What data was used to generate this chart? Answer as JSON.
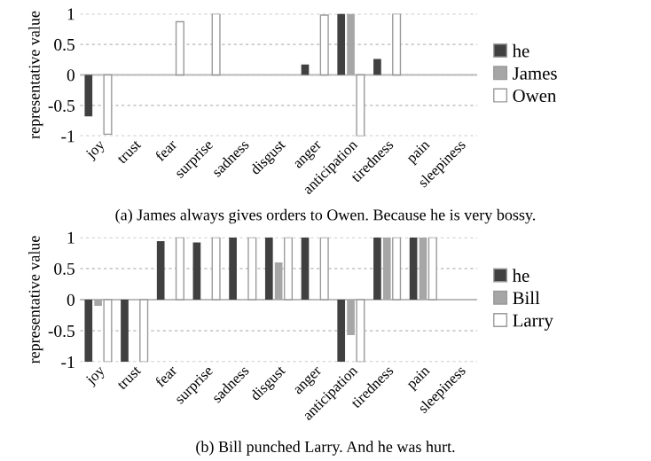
{
  "chart_data": [
    {
      "type": "bar",
      "ylabel": "representative value",
      "categories": [
        "joy",
        "trust",
        "fear",
        "surprise",
        "sadness",
        "disgust",
        "anger",
        "anticipation",
        "tiredness",
        "pain",
        "sleepiness"
      ],
      "series": [
        {
          "name": "he",
          "color": "#404040",
          "values": [
            -0.68,
            0,
            0,
            0,
            0,
            0,
            0.17,
            1,
            0.26,
            0,
            0
          ]
        },
        {
          "name": "James",
          "color": "#a6a6a6",
          "values": [
            0,
            0,
            0,
            0,
            0,
            0,
            0,
            1,
            0,
            0,
            0
          ]
        },
        {
          "name": "Owen",
          "color": "#ffffff",
          "values": [
            -0.97,
            0,
            0.87,
            1,
            0,
            0,
            0.98,
            -1,
            1,
            0,
            0
          ]
        }
      ],
      "ylim": [
        -1,
        1
      ],
      "yticks": [
        -1,
        -0.5,
        0,
        0.5,
        1
      ],
      "grid": "y",
      "legend": "right",
      "annotations": [
        "(a) James always gives orders to Owen. Because he is very bossy."
      ]
    },
    {
      "type": "bar",
      "ylabel": "representative value",
      "categories": [
        "joy",
        "trust",
        "fear",
        "surprise",
        "sadness",
        "disgust",
        "anger",
        "anticipation",
        "tiredness",
        "pain",
        "sleepiness"
      ],
      "series": [
        {
          "name": "he",
          "color": "#404040",
          "values": [
            -1,
            -1,
            0.94,
            0.92,
            1,
            1,
            1,
            -1,
            1,
            1,
            0
          ]
        },
        {
          "name": "Bill",
          "color": "#a6a6a6",
          "values": [
            -0.1,
            0,
            0,
            0,
            0,
            0.6,
            0,
            -0.57,
            1,
            1,
            0
          ]
        },
        {
          "name": "Larry",
          "color": "#ffffff",
          "values": [
            -1,
            -1,
            1,
            1,
            1,
            1,
            1,
            -1,
            1,
            1,
            0
          ]
        }
      ],
      "ylim": [
        -1,
        1
      ],
      "yticks": [
        -1,
        -0.5,
        0,
        0.5,
        1
      ],
      "grid": "y",
      "legend": "right",
      "annotations": [
        "(b) Bill punched Larry. And he was hurt."
      ]
    }
  ]
}
